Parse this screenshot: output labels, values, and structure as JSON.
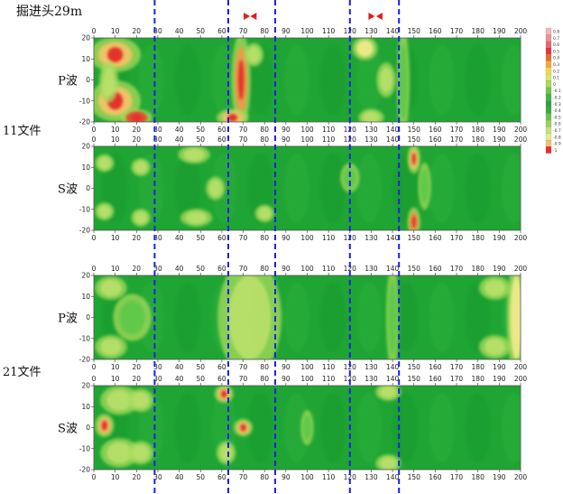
{
  "title": "掘进头29m",
  "x_ticks": [
    0,
    10,
    20,
    30,
    40,
    50,
    60,
    70,
    80,
    90,
    100,
    110,
    120,
    130,
    140,
    150,
    160,
    170,
    180,
    190,
    200
  ],
  "y_ticks": [
    20,
    10,
    0,
    -10,
    -20
  ],
  "groups": [
    {
      "label": "11文件",
      "panels": [
        {
          "wave": "P波"
        },
        {
          "wave": "S波"
        }
      ]
    },
    {
      "label": "21文件",
      "panels": [
        {
          "wave": "P波"
        },
        {
          "wave": "S波"
        }
      ]
    }
  ],
  "colorbar": {
    "labels": [
      "0.8",
      "0.7",
      "0.6",
      "0.5",
      "0.4",
      "0.3",
      "0.2",
      "0.1",
      "0",
      "-0.1",
      "-0.2",
      "-0.3",
      "-0.4",
      "-0.5",
      "-0.6",
      "-0.7",
      "-0.8",
      "-0.9",
      "-1"
    ],
    "colors": [
      "#f4b6bc",
      "#ef8f98",
      "#e86670",
      "#e4343f",
      "#ea6b25",
      "#f2a93a",
      "#f6d64e",
      "#d8e86a",
      "#a7db55",
      "#6fc646",
      "#44b53d",
      "#2da23a",
      "#3baa3c",
      "#6cc14a",
      "#9ad45a",
      "#c7e37a",
      "#eae890",
      "#f4c070",
      "#ee2a2a"
    ]
  },
  "markers": [
    {
      "x": 71.5,
      "shape": "right-triangle",
      "color": "#e41a1c"
    },
    {
      "x": 75,
      "shape": "left-triangle",
      "color": "#e41a1c"
    },
    {
      "x": 130,
      "shape": "right-triangle",
      "color": "#e41a1c"
    },
    {
      "x": 134,
      "shape": "left-triangle",
      "color": "#e41a1c"
    }
  ],
  "chart_data": {
    "type": "heatmap",
    "x_range": [
      0,
      200
    ],
    "y_range": [
      -20,
      20
    ],
    "base_color": "#1fa533",
    "dashed_lines_x": [
      28.5,
      63,
      85,
      120,
      143
    ],
    "dashed_line_color": "#1d1df0",
    "panels": [
      {
        "group": "11文件",
        "wave": "P波",
        "anomalies": [
          {
            "x": 10,
            "y": 12,
            "rx": 8,
            "ry": 6,
            "v": 0.6
          },
          {
            "x": 10,
            "y": -10,
            "rx": 8,
            "ry": 7,
            "v": 0.6
          },
          {
            "x": 20,
            "y": -18,
            "rx": 5,
            "ry": 3,
            "v": 0.8
          },
          {
            "x": 7,
            "y": -1,
            "rx": 3,
            "ry": 7,
            "v": 0.3
          },
          {
            "x": 69,
            "y": 0,
            "rx": 3,
            "ry": 16,
            "v": 0.7
          },
          {
            "x": 75,
            "y": 12,
            "rx": 3,
            "ry": 4,
            "v": 0.2
          },
          {
            "x": 65,
            "y": -18,
            "rx": 5,
            "ry": 3,
            "v": 0.5
          },
          {
            "x": 127,
            "y": 15,
            "rx": 4,
            "ry": 4,
            "v": 0.4
          },
          {
            "x": 137,
            "y": 0,
            "rx": 3,
            "ry": 6,
            "v": 0.3
          },
          {
            "x": 130,
            "y": -18,
            "rx": 4,
            "ry": 3,
            "v": 0.3
          },
          {
            "x": 145,
            "y": -1,
            "rx": 2,
            "ry": 18,
            "v": 0.1
          }
        ]
      },
      {
        "group": "11文件",
        "wave": "S波",
        "anomalies": [
          {
            "x": 5,
            "y": 12,
            "rx": 3,
            "ry": 3,
            "v": 0.2
          },
          {
            "x": 22,
            "y": 10,
            "rx": 3,
            "ry": 3,
            "v": 0.3
          },
          {
            "x": 5,
            "y": -11,
            "rx": 3,
            "ry": 3,
            "v": 0.2
          },
          {
            "x": 22,
            "y": -14,
            "rx": 3,
            "ry": 3,
            "v": 0.3
          },
          {
            "x": 47,
            "y": 16,
            "rx": 5,
            "ry": 3,
            "v": 0.3
          },
          {
            "x": 48,
            "y": -14,
            "rx": 5,
            "ry": 3,
            "v": 0.3
          },
          {
            "x": 57,
            "y": 0,
            "rx": 3,
            "ry": 4,
            "v": 0.2
          },
          {
            "x": 80,
            "y": -12,
            "rx": 3,
            "ry": 3,
            "v": 0.2
          },
          {
            "x": 120,
            "y": 5,
            "rx": 3,
            "ry": 5,
            "v": 0.1
          },
          {
            "x": 150,
            "y": 14,
            "rx": 2,
            "ry": 5,
            "v": 0.5
          },
          {
            "x": 150,
            "y": -16,
            "rx": 2,
            "ry": 5,
            "v": 0.7
          },
          {
            "x": 155,
            "y": 1,
            "rx": 2,
            "ry": 8,
            "v": 0.1
          }
        ]
      },
      {
        "group": "21文件",
        "wave": "P波",
        "anomalies": [
          {
            "x": 8,
            "y": 14,
            "rx": 5,
            "ry": 4,
            "v": 0.2
          },
          {
            "x": 8,
            "y": -14,
            "rx": 5,
            "ry": 4,
            "v": 0.2
          },
          {
            "x": 18,
            "y": 0,
            "rx": 6,
            "ry": 8,
            "v": 0.1
          },
          {
            "x": 73,
            "y": 0,
            "rx": 10,
            "ry": 20,
            "v": 0.2
          },
          {
            "x": 140,
            "y": 0,
            "rx": 2,
            "ry": 18,
            "v": 0.1
          },
          {
            "x": 188,
            "y": 14,
            "rx": 5,
            "ry": 4,
            "v": 0.2
          },
          {
            "x": 188,
            "y": -14,
            "rx": 5,
            "ry": 4,
            "v": 0.2
          },
          {
            "x": 198,
            "y": 0,
            "rx": 3,
            "ry": 20,
            "v": 0.4
          }
        ]
      },
      {
        "group": "21文件",
        "wave": "S波",
        "anomalies": [
          {
            "x": 5,
            "y": 1,
            "rx": 3,
            "ry": 4,
            "v": 0.5
          },
          {
            "x": 12,
            "y": 13,
            "rx": 6,
            "ry": 5,
            "v": 0.2
          },
          {
            "x": 22,
            "y": 13,
            "rx": 4,
            "ry": 4,
            "v": 0.2
          },
          {
            "x": 12,
            "y": -12,
            "rx": 6,
            "ry": 5,
            "v": 0.2
          },
          {
            "x": 22,
            "y": -12,
            "rx": 4,
            "ry": 4,
            "v": 0.2
          },
          {
            "x": 61,
            "y": 16,
            "rx": 3,
            "ry": 3,
            "v": 0.6
          },
          {
            "x": 70,
            "y": 0,
            "rx": 3,
            "ry": 3,
            "v": 0.6
          },
          {
            "x": 62,
            "y": -12,
            "rx": 3,
            "ry": 4,
            "v": 0.2
          },
          {
            "x": 100,
            "y": 0,
            "rx": 2,
            "ry": 6,
            "v": 0.1
          },
          {
            "x": 138,
            "y": 17,
            "rx": 4,
            "ry": 3,
            "v": 0.2
          },
          {
            "x": 138,
            "y": -17,
            "rx": 4,
            "ry": 3,
            "v": 0.3
          }
        ]
      }
    ]
  }
}
